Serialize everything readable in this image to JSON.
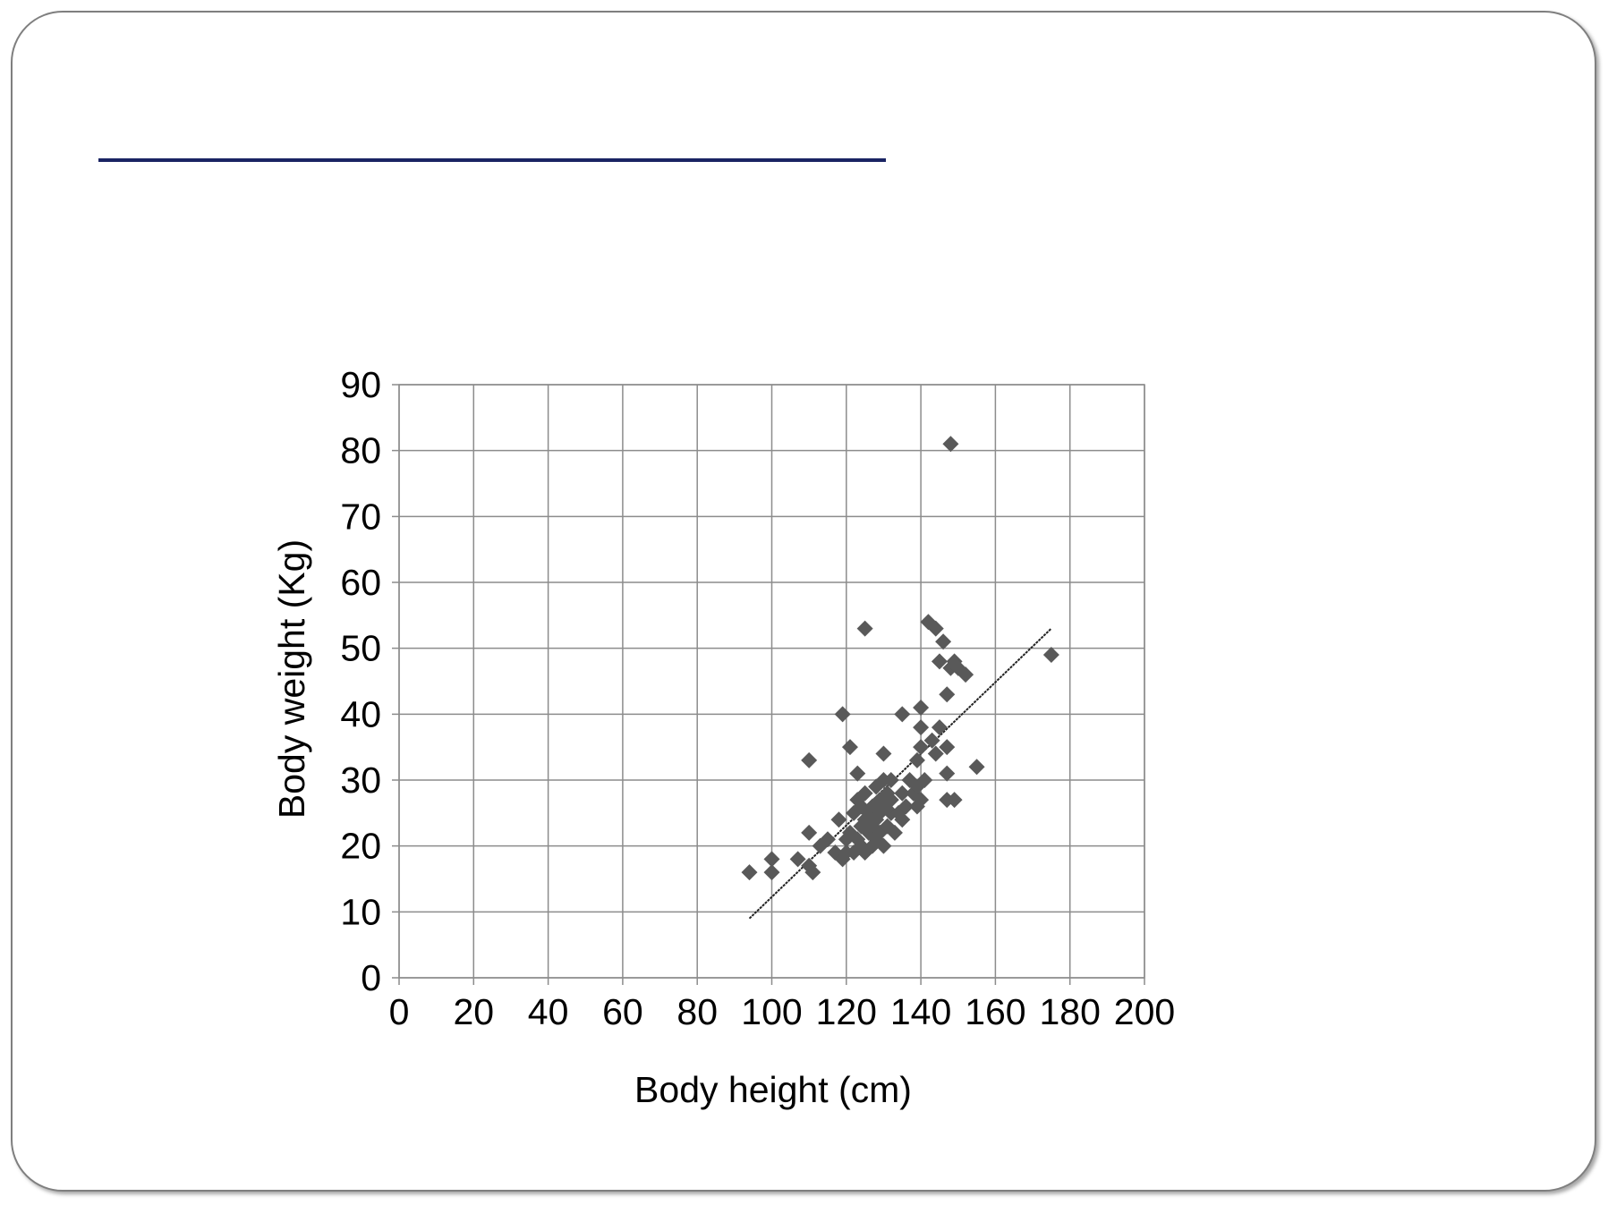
{
  "slide": {
    "title": ""
  },
  "chart_data": {
    "type": "scatter",
    "title": "",
    "xlabel": "Body height (cm)",
    "ylabel": "Body weight (Kg)",
    "xlim": [
      0,
      200
    ],
    "ylim": [
      0,
      90
    ],
    "xticks": [
      "0",
      "20",
      "40",
      "60",
      "80",
      "100",
      "120",
      "140",
      "160",
      "180",
      "200"
    ],
    "yticks": [
      "0",
      "10",
      "20",
      "30",
      "40",
      "50",
      "60",
      "70",
      "80",
      "90"
    ],
    "grid": true,
    "legend": "none",
    "marker": "diamond",
    "marker_color": "#595959",
    "trendline": {
      "type": "linear",
      "x": [
        94,
        175
      ],
      "y": [
        9,
        53
      ],
      "color": "#222222"
    },
    "points": [
      [
        94,
        16
      ],
      [
        100,
        18
      ],
      [
        100,
        16
      ],
      [
        107,
        18
      ],
      [
        110,
        33
      ],
      [
        110,
        22
      ],
      [
        110,
        17
      ],
      [
        111,
        16
      ],
      [
        113,
        20
      ],
      [
        115,
        21
      ],
      [
        117,
        19
      ],
      [
        118,
        24
      ],
      [
        119,
        40
      ],
      [
        119,
        18
      ],
      [
        120,
        21
      ],
      [
        120,
        19
      ],
      [
        121,
        35
      ],
      [
        121,
        22
      ],
      [
        122,
        25
      ],
      [
        122,
        19
      ],
      [
        123,
        31
      ],
      [
        123,
        27
      ],
      [
        123,
        21
      ],
      [
        124,
        26
      ],
      [
        124,
        23
      ],
      [
        124,
        20
      ],
      [
        125,
        53
      ],
      [
        125,
        28
      ],
      [
        125,
        24
      ],
      [
        125,
        19
      ],
      [
        126,
        22
      ],
      [
        126,
        25
      ],
      [
        127,
        26
      ],
      [
        127,
        23
      ],
      [
        127,
        20
      ],
      [
        128,
        29
      ],
      [
        128,
        24
      ],
      [
        128,
        21
      ],
      [
        129,
        27
      ],
      [
        129,
        22
      ],
      [
        129,
        25
      ],
      [
        130,
        34
      ],
      [
        130,
        30
      ],
      [
        130,
        26
      ],
      [
        130,
        20
      ],
      [
        131,
        28
      ],
      [
        131,
        23
      ],
      [
        132,
        30
      ],
      [
        132,
        27
      ],
      [
        132,
        25
      ],
      [
        133,
        22
      ],
      [
        134,
        25
      ],
      [
        135,
        40
      ],
      [
        135,
        28
      ],
      [
        135,
        24
      ],
      [
        136,
        26
      ],
      [
        137,
        30
      ],
      [
        138,
        28
      ],
      [
        139,
        33
      ],
      [
        139,
        29
      ],
      [
        139,
        26
      ],
      [
        140,
        41
      ],
      [
        140,
        38
      ],
      [
        140,
        35
      ],
      [
        140,
        27
      ],
      [
        141,
        30
      ],
      [
        142,
        54
      ],
      [
        143,
        36
      ],
      [
        144,
        53
      ],
      [
        144,
        34
      ],
      [
        145,
        48
      ],
      [
        145,
        38
      ],
      [
        146,
        51
      ],
      [
        147,
        35
      ],
      [
        147,
        31
      ],
      [
        147,
        27
      ],
      [
        147,
        43
      ],
      [
        148,
        47
      ],
      [
        148,
        81
      ],
      [
        149,
        48
      ],
      [
        149,
        27
      ],
      [
        150,
        47
      ],
      [
        152,
        46
      ],
      [
        155,
        32
      ],
      [
        175,
        49
      ]
    ]
  }
}
